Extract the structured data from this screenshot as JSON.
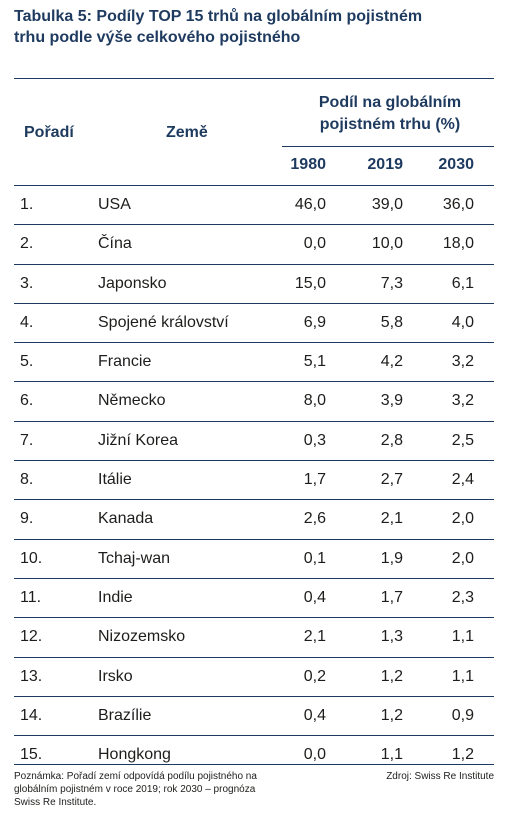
{
  "title": {
    "line1": "Tabulka 5: Podíly TOP 15 trhů na globálním pojistném",
    "line2": "trhu podle výše celkového pojistného"
  },
  "headers": {
    "rank": "Pořadí",
    "country": "Země",
    "share_line1": "Podíl na globálním",
    "share_line2": "pojistném trhu (%)",
    "years": [
      "1980",
      "2019",
      "2030"
    ]
  },
  "rows": [
    {
      "rank": "1.",
      "country": "USA",
      "v1980": "46,0",
      "v2019": "39,0",
      "v2030": "36,0"
    },
    {
      "rank": "2.",
      "country": "Čína",
      "v1980": "0,0",
      "v2019": "10,0",
      "v2030": "18,0"
    },
    {
      "rank": "3.",
      "country": "Japonsko",
      "v1980": "15,0",
      "v2019": "7,3",
      "v2030": "6,1"
    },
    {
      "rank": "4.",
      "country": "Spojené království",
      "v1980": "6,9",
      "v2019": "5,8",
      "v2030": "4,0"
    },
    {
      "rank": "5.",
      "country": "Francie",
      "v1980": "5,1",
      "v2019": "4,2",
      "v2030": "3,2"
    },
    {
      "rank": "6.",
      "country": "Německo",
      "v1980": "8,0",
      "v2019": "3,9",
      "v2030": "3,2"
    },
    {
      "rank": "7.",
      "country": "Jižní Korea",
      "v1980": "0,3",
      "v2019": "2,8",
      "v2030": "2,5"
    },
    {
      "rank": "8.",
      "country": "Itálie",
      "v1980": "1,7",
      "v2019": "2,7",
      "v2030": "2,4"
    },
    {
      "rank": "9.",
      "country": "Kanada",
      "v1980": "2,6",
      "v2019": "2,1",
      "v2030": "2,0"
    },
    {
      "rank": "10.",
      "country": "Tchaj-wan",
      "v1980": "0,1",
      "v2019": "1,9",
      "v2030": "2,0"
    },
    {
      "rank": "11.",
      "country": "Indie",
      "v1980": "0,4",
      "v2019": "1,7",
      "v2030": "2,3"
    },
    {
      "rank": "12.",
      "country": "Nizozemsko",
      "v1980": "2,1",
      "v2019": "1,3",
      "v2030": "1,1"
    },
    {
      "rank": "13.",
      "country": "Irsko",
      "v1980": "0,2",
      "v2019": "1,2",
      "v2030": "1,1"
    },
    {
      "rank": "14.",
      "country": "Brazílie",
      "v1980": "0,4",
      "v2019": "1,2",
      "v2030": "0,9"
    },
    {
      "rank": "15.",
      "country": "Hongkong",
      "v1980": "0,0",
      "v2019": "1,1",
      "v2030": "1,2"
    }
  ],
  "footer": {
    "note_line1": "Poznámka: Pořadí zemí odpovídá podílu pojistného na",
    "note_line2": "globálním pojistném v roce 2019; rok 2030 – prognóza",
    "note_line3": "Swiss Re Institute.",
    "source": "Zdroj: Swiss Re Institute"
  },
  "colors": {
    "accent": "#1e3a5f",
    "text": "#1d1d1b"
  }
}
